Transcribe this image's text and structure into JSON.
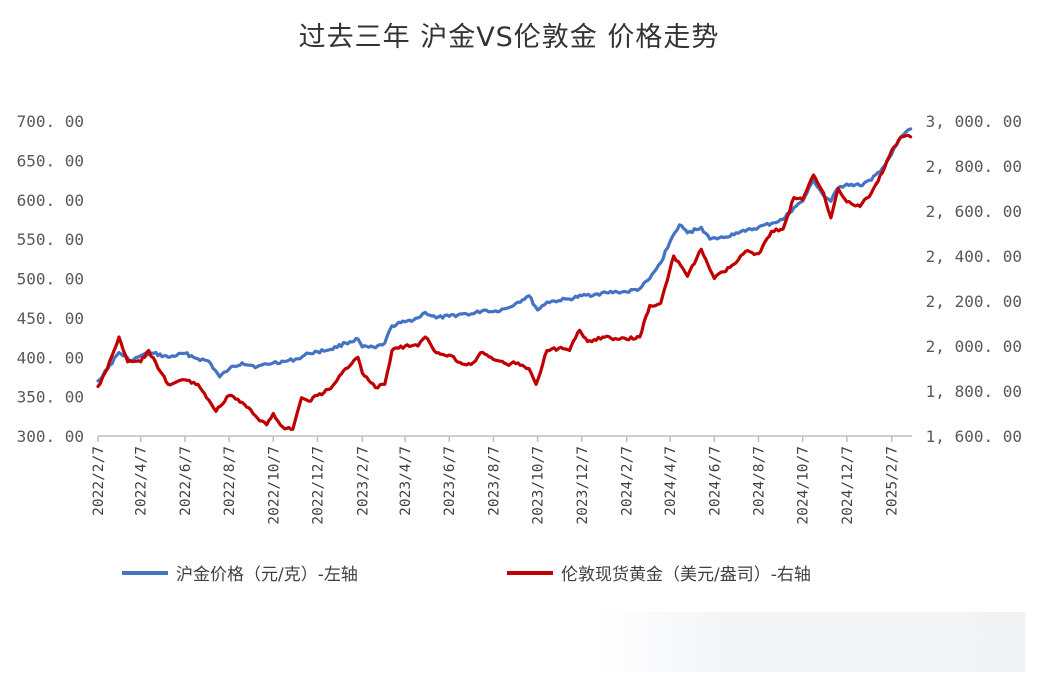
{
  "chart_data": {
    "type": "line",
    "title": "过去三年 沪金VS伦敦金 价格走势",
    "x_tick_labels": [
      "2022/2/7",
      "2022/4/7",
      "2022/6/7",
      "2022/8/7",
      "2022/10/7",
      "2022/12/7",
      "2023/2/7",
      "2023/4/7",
      "2023/6/7",
      "2023/8/7",
      "2023/10/7",
      "2023/12/7",
      "2024/2/7",
      "2024/4/7",
      "2024/6/7",
      "2024/8/7",
      "2024/10/7",
      "2024/12/7",
      "2025/2/7"
    ],
    "x_range": [
      "2022-02-07",
      "2025-03-07"
    ],
    "y_left": {
      "ylim": [
        300,
        700
      ],
      "tick_labels": [
        "700. 00",
        "650. 00",
        "600. 00",
        "550. 00",
        "500. 00",
        "450. 00",
        "400. 00",
        "350. 00",
        "300. 00"
      ]
    },
    "y_right": {
      "ylim": [
        1600,
        3000
      ],
      "tick_labels": [
        "3, 000. 00",
        "2, 800. 00",
        "2, 600. 00",
        "2, 400. 00",
        "2, 200. 00",
        "2, 000. 00",
        "1, 800. 00",
        "1, 600. 00"
      ]
    },
    "series": [
      {
        "name": "沪金价格（元/克）-左轴",
        "axis": "left",
        "color": "#4472c4",
        "points": [
          [
            "2022-02-07",
            370
          ],
          [
            "2022-02-20",
            385
          ],
          [
            "2022-03-08",
            406
          ],
          [
            "2022-03-25",
            395
          ],
          [
            "2022-04-07",
            402
          ],
          [
            "2022-04-25",
            405
          ],
          [
            "2022-05-15",
            400
          ],
          [
            "2022-06-07",
            405
          ],
          [
            "2022-06-25",
            398
          ],
          [
            "2022-07-10",
            395
          ],
          [
            "2022-07-25",
            375
          ],
          [
            "2022-08-07",
            385
          ],
          [
            "2022-08-25",
            393
          ],
          [
            "2022-09-15",
            388
          ],
          [
            "2022-10-07",
            393
          ],
          [
            "2022-10-25",
            395
          ],
          [
            "2022-11-10",
            398
          ],
          [
            "2022-11-25",
            405
          ],
          [
            "2022-12-07",
            407
          ],
          [
            "2022-12-25",
            410
          ],
          [
            "2023-01-15",
            418
          ],
          [
            "2023-02-01",
            423
          ],
          [
            "2023-02-07",
            413
          ],
          [
            "2023-02-25",
            412
          ],
          [
            "2023-03-10",
            418
          ],
          [
            "2023-03-20",
            440
          ],
          [
            "2023-04-07",
            445
          ],
          [
            "2023-04-25",
            450
          ],
          [
            "2023-05-05",
            457
          ],
          [
            "2023-05-20",
            450
          ],
          [
            "2023-06-07",
            452
          ],
          [
            "2023-06-25",
            455
          ],
          [
            "2023-07-10",
            455
          ],
          [
            "2023-07-25",
            460
          ],
          [
            "2023-08-07",
            458
          ],
          [
            "2023-08-25",
            462
          ],
          [
            "2023-09-10",
            470
          ],
          [
            "2023-09-25",
            478
          ],
          [
            "2023-10-07",
            460
          ],
          [
            "2023-10-20",
            470
          ],
          [
            "2023-11-05",
            472
          ],
          [
            "2023-11-20",
            474
          ],
          [
            "2023-12-07",
            478
          ],
          [
            "2023-12-25",
            480
          ],
          [
            "2024-01-10",
            482
          ],
          [
            "2024-01-25",
            483
          ],
          [
            "2024-02-07",
            483
          ],
          [
            "2024-02-25",
            487
          ],
          [
            "2024-03-10",
            500
          ],
          [
            "2024-03-25",
            520
          ],
          [
            "2024-04-10",
            553
          ],
          [
            "2024-04-20",
            568
          ],
          [
            "2024-05-01",
            558
          ],
          [
            "2024-05-20",
            565
          ],
          [
            "2024-06-01",
            550
          ],
          [
            "2024-06-20",
            552
          ],
          [
            "2024-07-07",
            558
          ],
          [
            "2024-07-20",
            560
          ],
          [
            "2024-08-07",
            565
          ],
          [
            "2024-08-25",
            570
          ],
          [
            "2024-09-10",
            575
          ],
          [
            "2024-09-25",
            590
          ],
          [
            "2024-10-07",
            598
          ],
          [
            "2024-10-22",
            625
          ],
          [
            "2024-11-05",
            605
          ],
          [
            "2024-11-15",
            598
          ],
          [
            "2024-11-25",
            615
          ],
          [
            "2024-12-07",
            620
          ],
          [
            "2024-12-25",
            618
          ],
          [
            "2025-01-10",
            625
          ],
          [
            "2025-01-25",
            640
          ],
          [
            "2025-02-07",
            658
          ],
          [
            "2025-02-20",
            680
          ],
          [
            "2025-03-05",
            690
          ]
        ]
      },
      {
        "name": "伦敦现货黄金（美元/盎司）-右轴",
        "axis": "right",
        "color": "#c00000",
        "points": [
          [
            "2022-02-07",
            1820
          ],
          [
            "2022-02-20",
            1900
          ],
          [
            "2022-03-08",
            2040
          ],
          [
            "2022-03-20",
            1930
          ],
          [
            "2022-04-07",
            1930
          ],
          [
            "2022-04-18",
            1980
          ],
          [
            "2022-05-01",
            1900
          ],
          [
            "2022-05-15",
            1830
          ],
          [
            "2022-06-07",
            1850
          ],
          [
            "2022-06-25",
            1830
          ],
          [
            "2022-07-10",
            1760
          ],
          [
            "2022-07-20",
            1710
          ],
          [
            "2022-08-07",
            1780
          ],
          [
            "2022-08-25",
            1750
          ],
          [
            "2022-09-15",
            1680
          ],
          [
            "2022-09-28",
            1650
          ],
          [
            "2022-10-07",
            1700
          ],
          [
            "2022-10-20",
            1640
          ],
          [
            "2022-11-03",
            1630
          ],
          [
            "2022-11-15",
            1770
          ],
          [
            "2022-11-25",
            1755
          ],
          [
            "2022-12-07",
            1780
          ],
          [
            "2022-12-25",
            1810
          ],
          [
            "2023-01-15",
            1900
          ],
          [
            "2023-02-01",
            1950
          ],
          [
            "2023-02-07",
            1880
          ],
          [
            "2023-02-25",
            1815
          ],
          [
            "2023-03-10",
            1830
          ],
          [
            "2023-03-20",
            1980
          ],
          [
            "2023-04-07",
            2000
          ],
          [
            "2023-04-25",
            2000
          ],
          [
            "2023-05-05",
            2040
          ],
          [
            "2023-05-20",
            1970
          ],
          [
            "2023-06-07",
            1960
          ],
          [
            "2023-06-25",
            1920
          ],
          [
            "2023-07-10",
            1925
          ],
          [
            "2023-07-20",
            1970
          ],
          [
            "2023-08-07",
            1940
          ],
          [
            "2023-08-25",
            1920
          ],
          [
            "2023-09-10",
            1925
          ],
          [
            "2023-09-25",
            1900
          ],
          [
            "2023-10-05",
            1830
          ],
          [
            "2023-10-20",
            1980
          ],
          [
            "2023-11-05",
            1990
          ],
          [
            "2023-11-20",
            1980
          ],
          [
            "2023-12-04",
            2070
          ],
          [
            "2023-12-15",
            2020
          ],
          [
            "2024-01-05",
            2040
          ],
          [
            "2024-01-25",
            2030
          ],
          [
            "2024-02-07",
            2030
          ],
          [
            "2024-02-25",
            2040
          ],
          [
            "2024-03-10",
            2180
          ],
          [
            "2024-03-25",
            2190
          ],
          [
            "2024-04-12",
            2400
          ],
          [
            "2024-05-01",
            2310
          ],
          [
            "2024-05-20",
            2430
          ],
          [
            "2024-06-07",
            2300
          ],
          [
            "2024-06-20",
            2330
          ],
          [
            "2024-07-07",
            2370
          ],
          [
            "2024-07-20",
            2420
          ],
          [
            "2024-08-07",
            2410
          ],
          [
            "2024-08-25",
            2510
          ],
          [
            "2024-09-10",
            2520
          ],
          [
            "2024-09-25",
            2660
          ],
          [
            "2024-10-07",
            2650
          ],
          [
            "2024-10-22",
            2760
          ],
          [
            "2024-11-05",
            2680
          ],
          [
            "2024-11-15",
            2570
          ],
          [
            "2024-11-25",
            2700
          ],
          [
            "2024-12-07",
            2640
          ],
          [
            "2024-12-25",
            2620
          ],
          [
            "2025-01-10",
            2680
          ],
          [
            "2025-01-25",
            2770
          ],
          [
            "2025-02-07",
            2870
          ],
          [
            "2025-02-20",
            2930
          ],
          [
            "2025-03-05",
            2930
          ]
        ]
      }
    ],
    "legend_position": "bottom",
    "grid": false
  }
}
